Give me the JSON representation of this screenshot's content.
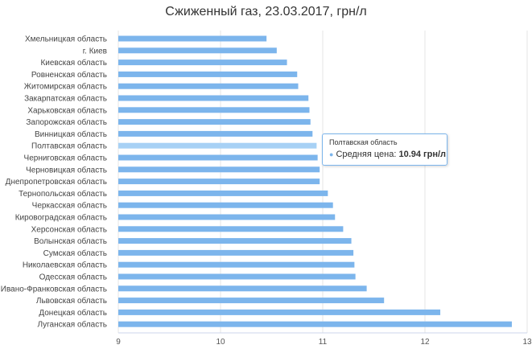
{
  "chart_data": {
    "type": "bar",
    "orientation": "horizontal",
    "title": "Сжиженный газ, 23.03.2017, грн/л",
    "categories": [
      "Хмельницкая область",
      "г. Киев",
      "Киевская область",
      "Ровненская область",
      "Житомирская область",
      "Закарпатская область",
      "Харьковская область",
      "Запорожская область",
      "Винницкая область",
      "Полтавская область",
      "Черниговская область",
      "Черновицкая область",
      "Днепропетровская область",
      "Тернопольская область",
      "Черкасская область",
      "Кировоградская область",
      "Херсонская область",
      "Волынская область",
      "Сумская область",
      "Николаевская область",
      "Одесская область",
      "Ивано-Франковская область",
      "Львовская область",
      "Донецкая область",
      "Луганская область"
    ],
    "series": [
      {
        "name": "Средняя цена",
        "color": "#7cb5ec",
        "values": [
          10.45,
          10.55,
          10.65,
          10.75,
          10.76,
          10.86,
          10.87,
          10.88,
          10.9,
          10.94,
          10.95,
          10.97,
          10.97,
          11.05,
          11.1,
          11.12,
          11.2,
          11.28,
          11.3,
          11.31,
          11.32,
          11.43,
          11.6,
          12.15,
          12.85
        ]
      }
    ],
    "xlim": [
      9,
      13
    ],
    "ticks": [
      9,
      10,
      11,
      12,
      13
    ],
    "grid": true,
    "highlight_index": 9,
    "highlight_color": "#a7d1f5"
  },
  "tooltip": {
    "title": "Полтавская область",
    "series_label": "Средняя цена:",
    "value": "10.94 грн/л"
  }
}
